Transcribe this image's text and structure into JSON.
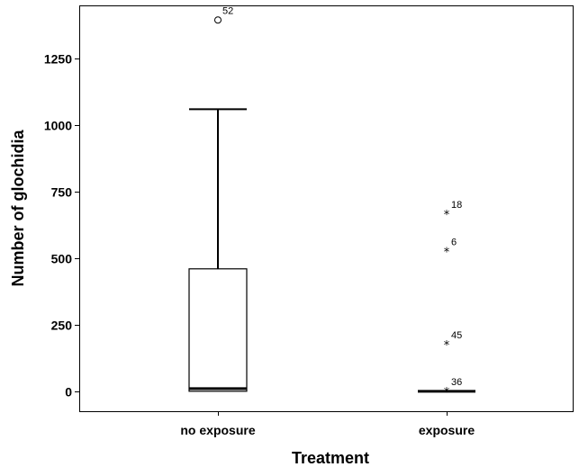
{
  "chart_data": {
    "type": "boxplot",
    "xlabel": "Treatment",
    "ylabel": "Number of glochidia",
    "ylim": [
      -75,
      1450
    ],
    "yticks": [
      0,
      250,
      500,
      750,
      1000,
      1250
    ],
    "ytick_labels": [
      "0",
      "250",
      "500",
      "750",
      "1000",
      "1250"
    ],
    "grid": false,
    "categories": [
      "no exposure",
      "exposure"
    ],
    "boxes": [
      {
        "category": "no exposure",
        "whisker_low": 0,
        "q1": 0,
        "median": 10,
        "q3": 460,
        "whisker_high": 1060,
        "outliers": [
          {
            "value": 1395,
            "label": "52",
            "marker": "circle"
          }
        ]
      },
      {
        "category": "exposure",
        "whisker_low": 0,
        "q1": 0,
        "median": 0,
        "q3": 0,
        "whisker_high": 0,
        "outliers": [
          {
            "value": 665,
            "label": "18",
            "marker": "star"
          },
          {
            "value": 525,
            "label": "6",
            "marker": "star"
          },
          {
            "value": 175,
            "label": "45",
            "marker": "star"
          },
          {
            "value": 0,
            "label": "36",
            "marker": "star"
          }
        ]
      }
    ]
  }
}
